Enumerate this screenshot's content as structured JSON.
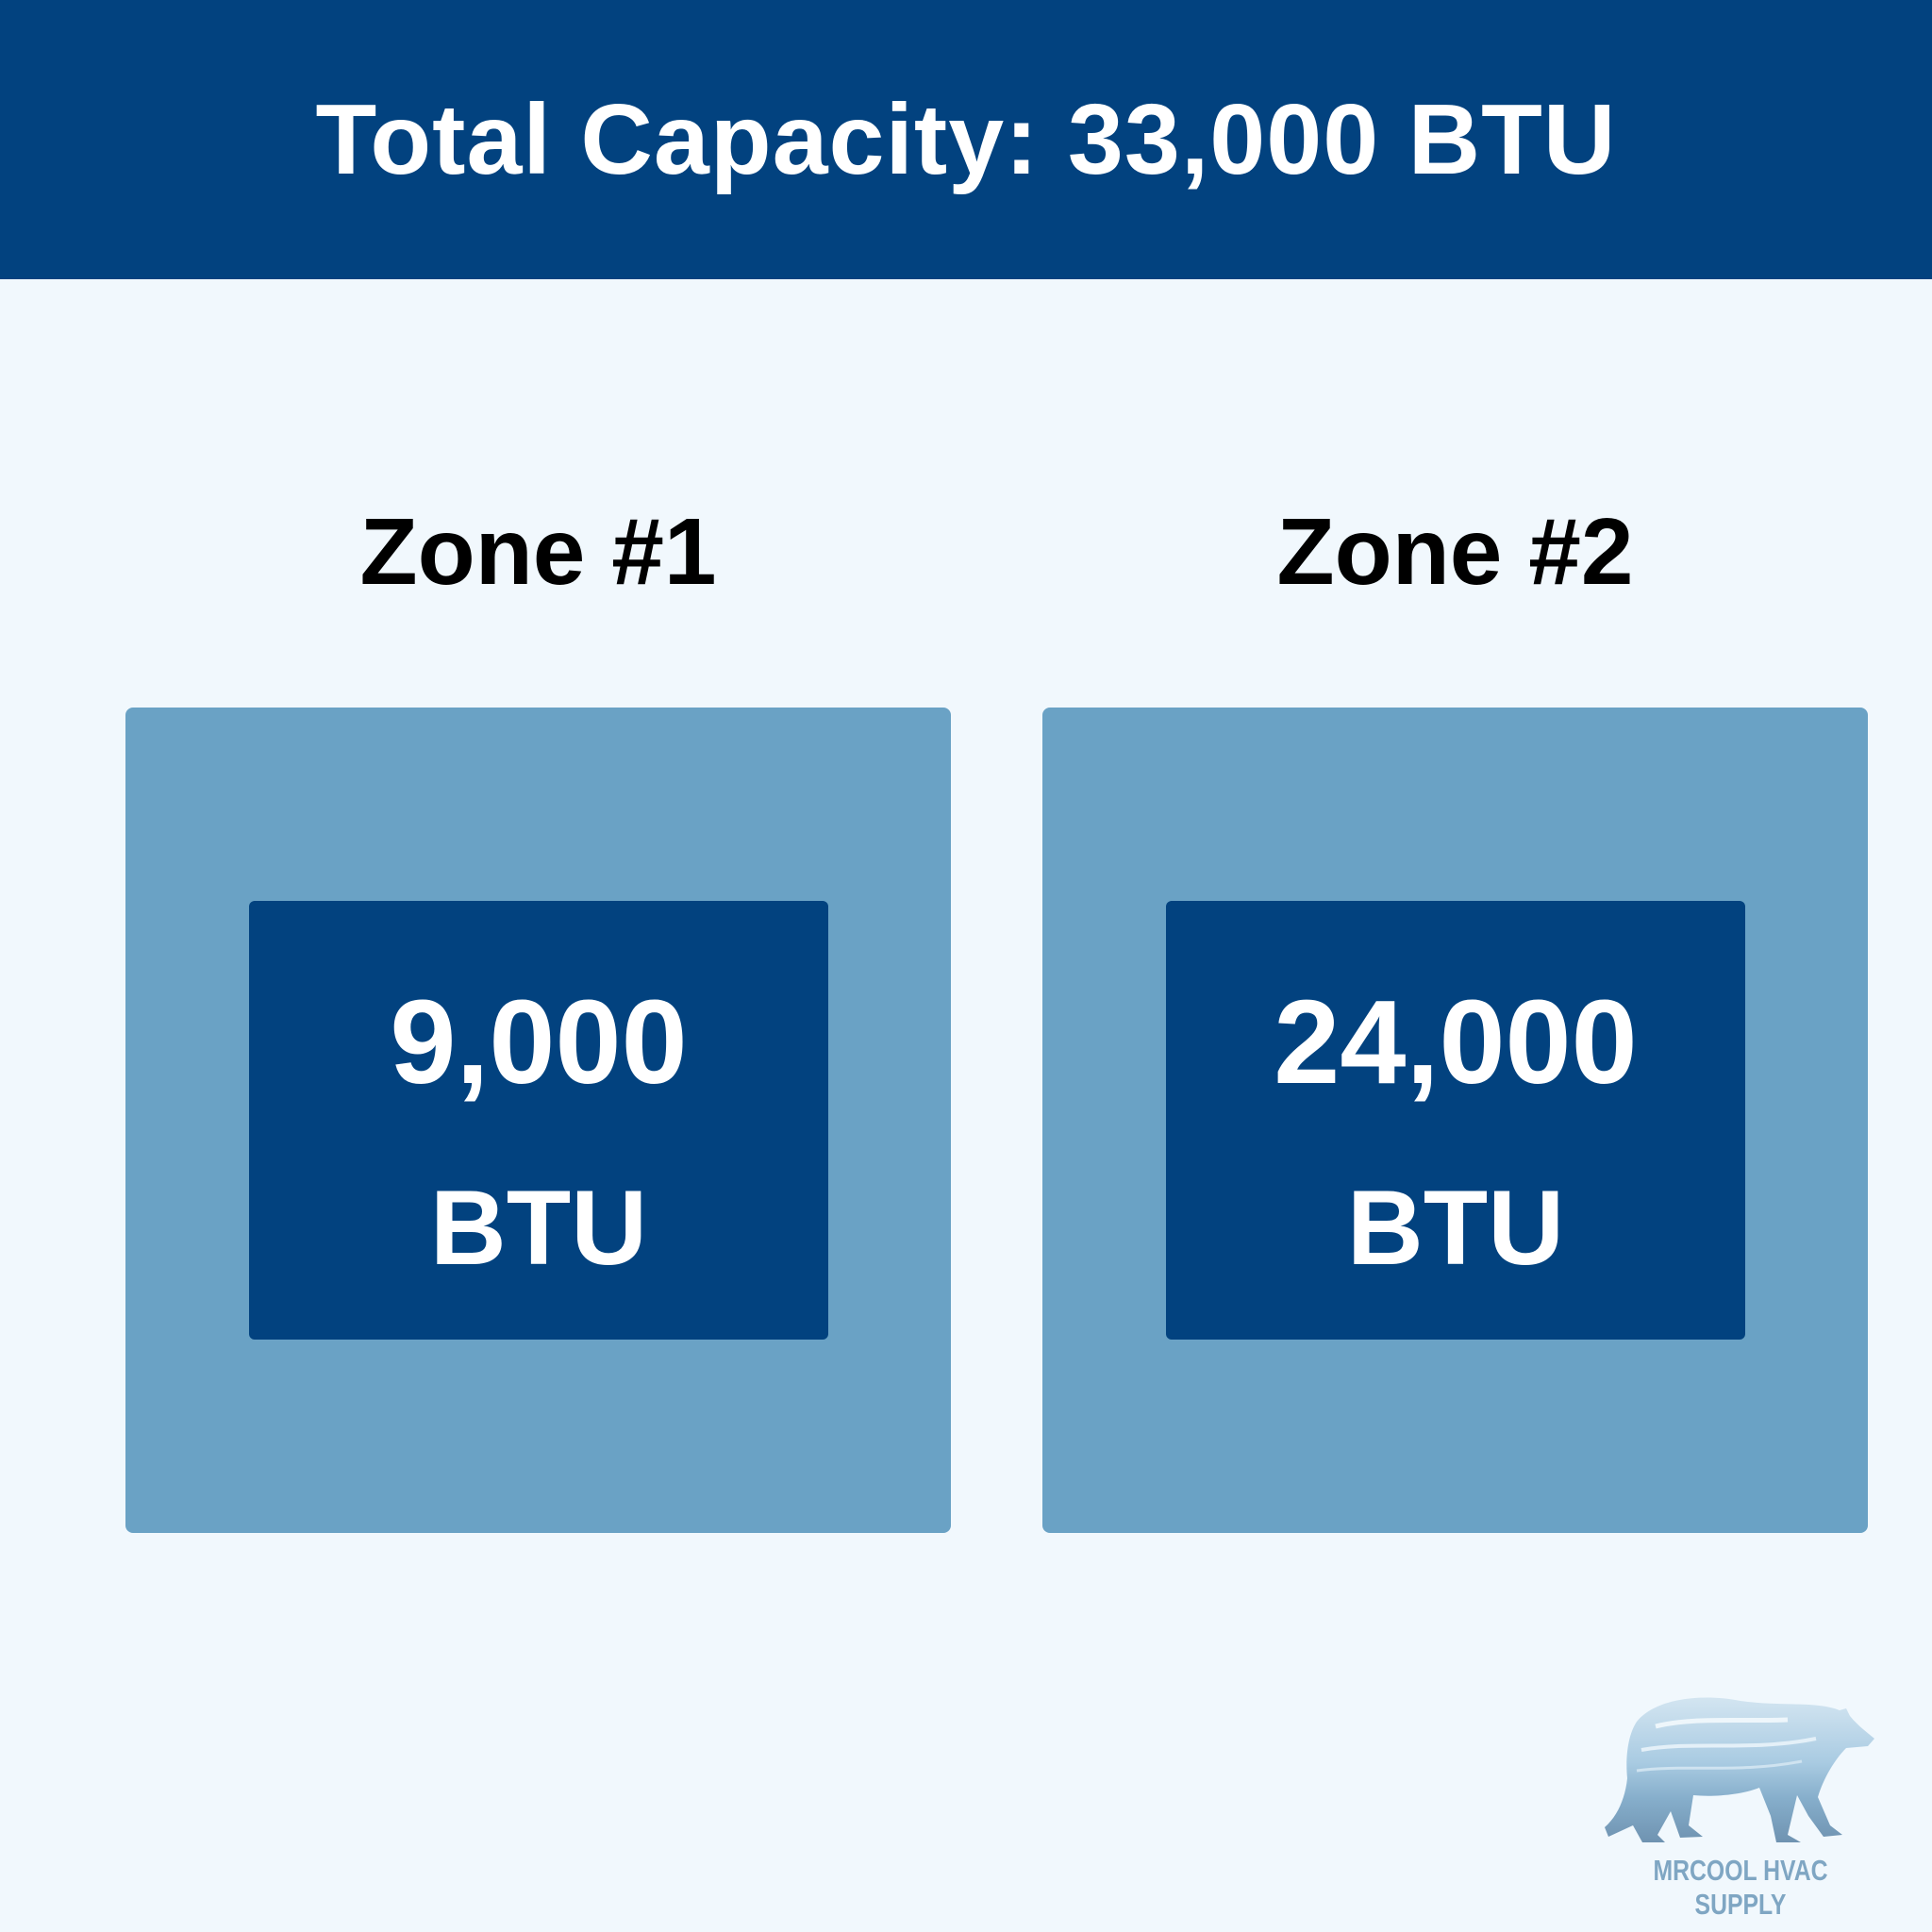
{
  "header": {
    "title": "Total Capacity: 33,000 BTU"
  },
  "zones": [
    {
      "label": "Zone #1",
      "value": "9,000",
      "unit": "BTU"
    },
    {
      "label": "Zone #2",
      "value": "24,000",
      "unit": "BTU"
    }
  ],
  "logo": {
    "text": "MRCOOL HVAC SUPPLY",
    "icon": "polar-bear-icon"
  },
  "colors": {
    "primary": "#02427F",
    "box": "#6AA2C5",
    "background": "#F1F8FD"
  }
}
